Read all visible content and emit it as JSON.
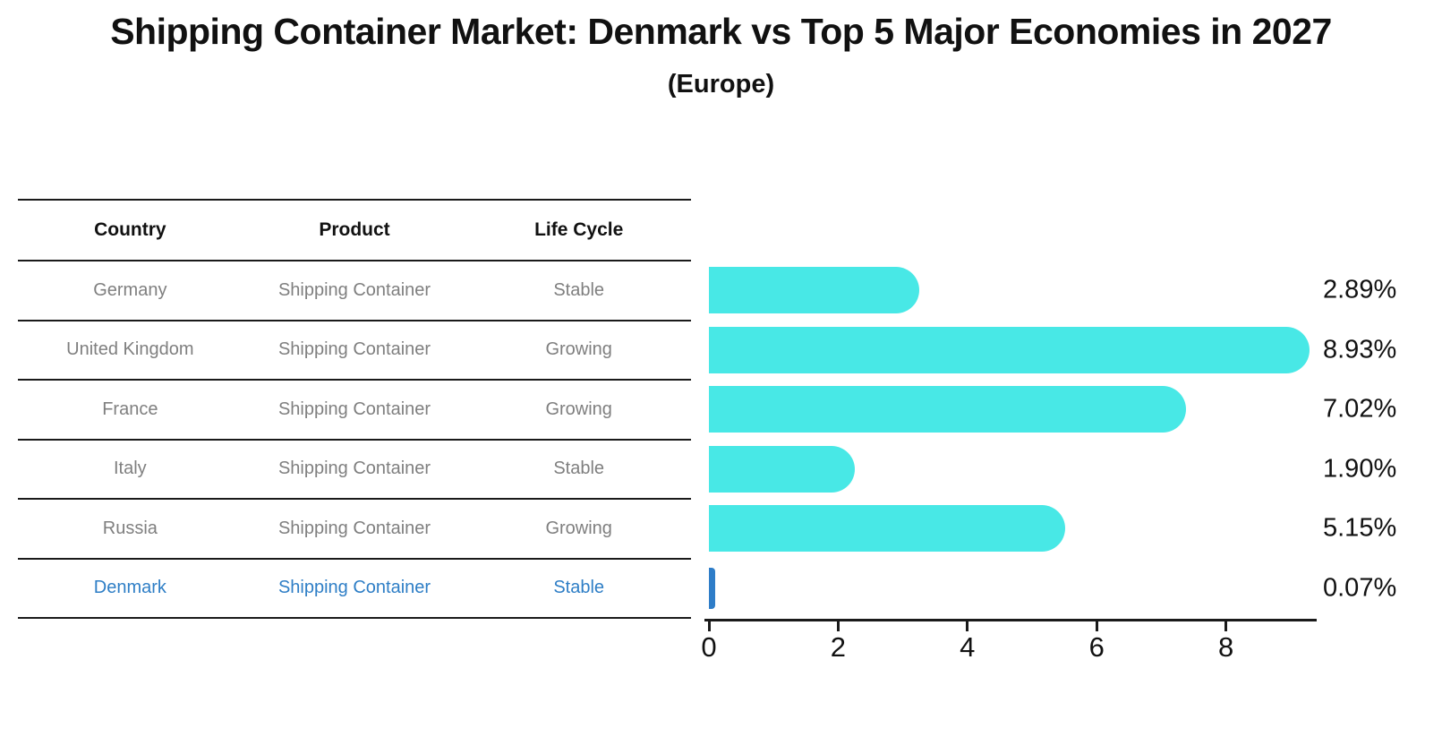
{
  "title": "Shipping Container Market: Denmark vs Top 5 Major Economies in 2027",
  "subtitle": "(Europe)",
  "table": {
    "headers": [
      "Country",
      "Product",
      "Life Cycle"
    ],
    "rows": [
      {
        "country": "Germany",
        "product": "Shipping Container",
        "life_cycle": "Stable",
        "highlight": false
      },
      {
        "country": "United Kingdom",
        "product": "Shipping Container",
        "life_cycle": "Growing",
        "highlight": false
      },
      {
        "country": "France",
        "product": "Shipping Container",
        "life_cycle": "Growing",
        "highlight": false
      },
      {
        "country": "Italy",
        "product": "Shipping Container",
        "life_cycle": "Stable",
        "highlight": false
      },
      {
        "country": "Russia",
        "product": "Shipping Container",
        "life_cycle": "Growing",
        "highlight": true
      }
    ]
  },
  "chart_data": {
    "type": "bar",
    "orientation": "horizontal",
    "title": "Shipping Container Market: Denmark vs Top 5 Major Economies in 2027 (Europe)",
    "categories": [
      "Germany",
      "United Kingdom",
      "France",
      "Italy",
      "Russia",
      "Denmark"
    ],
    "values": [
      2.89,
      8.93,
      7.02,
      1.9,
      5.15,
      0.07
    ],
    "data_labels": [
      "2.89%",
      "8.93%",
      "7.02%",
      "1.90%",
      "5.15%",
      "0.07%"
    ],
    "xlabel": "",
    "ylabel": "",
    "x_ticks": [
      0,
      2,
      4,
      6,
      8
    ],
    "xlim": [
      0,
      9.4
    ],
    "grid": false,
    "legend": false,
    "bar_color": "#48e8e6",
    "highlight_color": "#2e7dc8",
    "highlight_index": 5
  }
}
